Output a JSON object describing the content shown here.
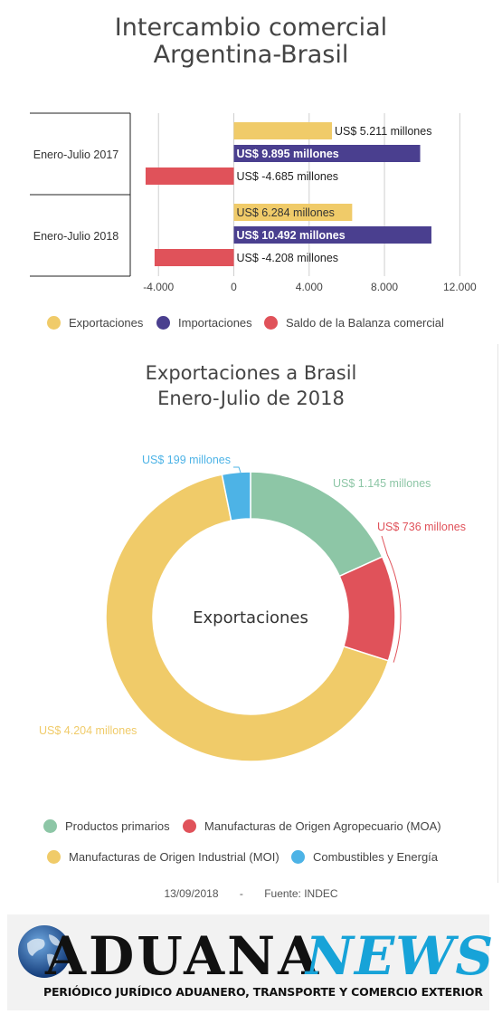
{
  "chart1": {
    "title_line1": "Intercambio comercial",
    "title_line2": "Argentina-Brasil"
  },
  "chart2": {
    "title_line1": "Exportaciones a Brasil",
    "title_line2": "Enero-Julio de 2018",
    "center_label": "Exportaciones"
  },
  "legend1": [
    {
      "label": "Exportaciones",
      "color": "#f0cb69"
    },
    {
      "label": "Importaciones",
      "color": "#4a3f8f"
    },
    {
      "label": "Saldo de la Balanza comercial",
      "color": "#e0525a"
    }
  ],
  "legend2": [
    {
      "label": "Productos primarios",
      "color": "#8dc6a6"
    },
    {
      "label": "Manufacturas de Origen Agropecuario (MOA)",
      "color": "#e0525a"
    },
    {
      "label": "Manufacturas de Origen Industrial (MOI)",
      "color": "#f0cb69"
    },
    {
      "label": "Combustibles y Energía",
      "color": "#4db3e6"
    }
  ],
  "footer": {
    "date": "13/09/2018",
    "separator": "-",
    "source": "Fuente: INDEC"
  },
  "banner": {
    "brand_main": "ADUANA",
    "brand_accent": "NEWS",
    "tagline": "PERIÓDICO JURÍDICO ADUANERO, TRANSPORTE Y COMERCIO EXTERIOR"
  },
  "chart_data": [
    {
      "type": "bar",
      "orientation": "horizontal",
      "title": "Intercambio comercial Argentina-Brasil",
      "categories": [
        "Enero-Julio 2017",
        "Enero-Julio 2018"
      ],
      "series": [
        {
          "name": "Exportaciones",
          "values": [
            5211,
            6284
          ],
          "labels": [
            "US$ 5.211 millones",
            "US$ 6.284 millones"
          ],
          "color": "#f0cb69"
        },
        {
          "name": "Importaciones",
          "values": [
            9895,
            10492
          ],
          "labels": [
            "US$ 9.895 millones",
            "US$ 10.492 millones"
          ],
          "color": "#4a3f8f"
        },
        {
          "name": "Saldo de la Balanza comercial",
          "values": [
            -4685,
            -4208
          ],
          "labels": [
            "US$ -4.685 millones",
            "US$ -4.208 millones"
          ],
          "color": "#e0525a"
        }
      ],
      "xticks": [
        -4000,
        0,
        4000,
        8000,
        12000
      ],
      "xtick_labels": [
        "-4.000",
        "0",
        "4.000",
        "8.000",
        "12.000"
      ],
      "xlim": [
        -5500,
        14000
      ],
      "grid": true,
      "legend_position": "bottom"
    },
    {
      "type": "pie",
      "variant": "donut",
      "title": "Exportaciones a Brasil Enero-Julio de 2018",
      "slices": [
        {
          "name": "Productos primarios",
          "value": 1145,
          "label": "US$ 1.145 millones",
          "color": "#8dc6a6"
        },
        {
          "name": "Manufacturas de Origen Agropecuario (MOA)",
          "value": 736,
          "label": "US$ 736 millones",
          "color": "#e0525a"
        },
        {
          "name": "Manufacturas de Origen Industrial (MOI)",
          "value": 4204,
          "label": "US$ 4.204 millones",
          "color": "#f0cb69"
        },
        {
          "name": "Combustibles y Energía",
          "value": 199,
          "label": "US$ 199 millones",
          "color": "#4db3e6"
        }
      ],
      "legend_position": "bottom"
    }
  ]
}
